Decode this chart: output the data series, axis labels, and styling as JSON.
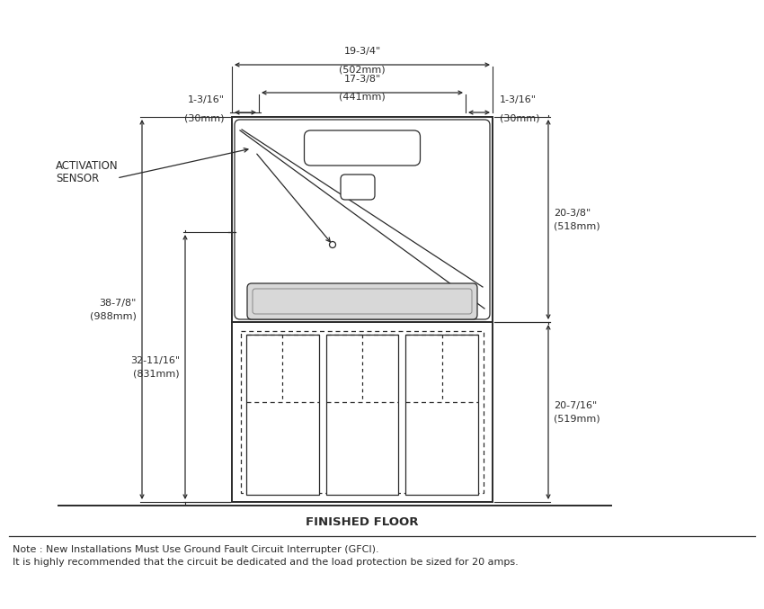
{
  "bg_color": "#ffffff",
  "line_color": "#2a2a2a",
  "fig_width": 8.5,
  "fig_height": 6.77,
  "title_note1": "Note : New Installations Must Use Ground Fault Circuit Interrupter (GFCI).",
  "title_note2": "It is highly recommended that the circuit be dedicated and the load protection be sized for 20 amps.",
  "floor_label": "FINISHED FLOOR",
  "activation_label1": "ACTIVATION",
  "activation_label2": "SENSOR",
  "dim_top_width1": "19-3/4\"",
  "dim_top_width1_mm": "(502mm)",
  "dim_top_width2": "17-3/8\"",
  "dim_top_width2_mm": "(441mm)",
  "dim_left1": "1-3/16\"",
  "dim_left1_mm": "(30mm)",
  "dim_right1": "1-3/16\"",
  "dim_right1_mm": "(30mm)",
  "dim_right_height1": "20-3/8\"",
  "dim_right_height1_mm": "(518mm)",
  "dim_right_height2": "20-7/16\"",
  "dim_right_height2_mm": "(519mm)",
  "dim_left_height1": "38-7/8\"",
  "dim_left_height1_mm": "(988mm)",
  "dim_left_height2": "32-11/16\"",
  "dim_left_height2_mm": "(831mm)"
}
